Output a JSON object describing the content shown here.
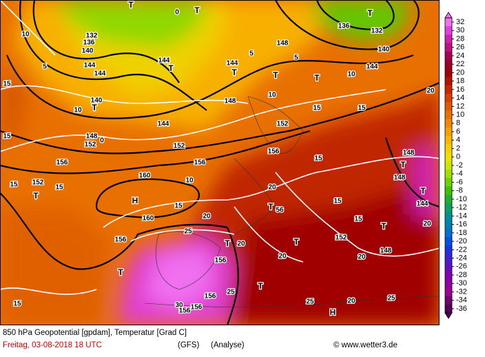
{
  "map": {
    "labels": [
      "T",
      "T",
      "0",
      "10",
      "132",
      "136",
      "140",
      "144",
      "144",
      "144",
      "T",
      "144",
      "T",
      "148",
      "T",
      "T",
      "10",
      "144",
      "136",
      "132",
      "T",
      "140",
      "15",
      "T",
      "10",
      "140",
      "144",
      "148",
      "152",
      "15",
      "15",
      "20",
      "148",
      "152",
      "152",
      "156",
      "156",
      "156",
      "10",
      "160",
      "H",
      "160",
      "15",
      "20",
      "20",
      "T",
      "56",
      "15",
      "15",
      "15",
      "152",
      "148",
      "T",
      "144",
      "T",
      "148",
      "148",
      "T",
      "152",
      "T",
      "15",
      "156",
      "25",
      "T",
      "20",
      "T",
      "20",
      "156",
      "T",
      "156",
      "25",
      "T",
      "30",
      "156",
      "156",
      "25",
      "H",
      "20",
      "25",
      "20",
      "15",
      "15",
      "5",
      "5",
      "5",
      "10",
      "0",
      "20",
      "15"
    ]
  },
  "colorbar": {
    "ticks": [
      32,
      30,
      28,
      26,
      24,
      22,
      20,
      18,
      16,
      14,
      12,
      10,
      8,
      6,
      4,
      2,
      0,
      -2,
      -4,
      -6,
      -8,
      -10,
      -12,
      -14,
      -16,
      -18,
      -20,
      -22,
      -24,
      -26,
      -28,
      -30,
      -32,
      -34,
      -36
    ],
    "colors": [
      "#f070f0",
      "#e040d8",
      "#d020b0",
      "#c01080",
      "#a80050",
      "#980028",
      "#a00000",
      "#b81000",
      "#c82800",
      "#d84000",
      "#e05800",
      "#e87000",
      "#f08800",
      "#f8a000",
      "#f8b800",
      "#f8d000",
      "#f0e000",
      "#c8e800",
      "#a0e000",
      "#70d000",
      "#40c000",
      "#20b030",
      "#10a060",
      "#009090",
      "#0080b0",
      "#0070d0",
      "#0050e0",
      "#2030e0",
      "#4020d0",
      "#6010c0",
      "#8000b0",
      "#9000a0",
      "#a00090",
      "#700070",
      "#500050"
    ]
  },
  "footer": {
    "title": "850 hPa Geopotential [gpdam], Temperatur [Grad C]",
    "date": "Freitag, 03-08-2018  18 UTC",
    "model": "(GFS)",
    "run": "(Analyse)",
    "source": "© www.wetter3.de"
  }
}
